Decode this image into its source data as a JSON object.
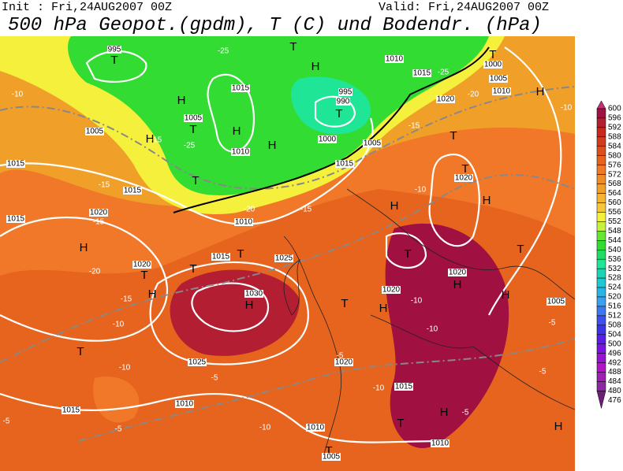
{
  "header": {
    "init": "Init : Fri,24AUG2007 00Z",
    "valid": "Valid: Fri,24AUG2007 00Z",
    "title": "500 hPa Geopot.(gpdm), T (C) und Bodendr. (hPa)"
  },
  "colorbar": {
    "labels": [
      600,
      596,
      592,
      588,
      584,
      580,
      576,
      572,
      568,
      564,
      560,
      556,
      552,
      548,
      544,
      540,
      536,
      532,
      528,
      524,
      520,
      516,
      512,
      508,
      504,
      500,
      496,
      492,
      488,
      484,
      480,
      476
    ],
    "colors": [
      "#c0307a",
      "#a01040",
      "#b41e32",
      "#c8281e",
      "#d23c1e",
      "#dc501e",
      "#e6641e",
      "#f07828",
      "#f08c28",
      "#f0a028",
      "#f5b432",
      "#f5c83c",
      "#f5f03c",
      "#c8f03c",
      "#64e632",
      "#32dc32",
      "#1edc64",
      "#1ee696",
      "#1ed2b4",
      "#1ec8d2",
      "#28b4e6",
      "#3ca0f0",
      "#3c78f0",
      "#3c50f0",
      "#3c32e6",
      "#5a1ee6",
      "#7a14dc",
      "#9614d2",
      "#b414c8",
      "#a01eb4",
      "#8c28a0",
      "#6e1e78"
    ]
  },
  "map_labels": [
    "T",
    "T",
    "H",
    "H",
    "H",
    "T",
    "H",
    "H",
    "H",
    "T",
    "T",
    "T",
    "T",
    "H",
    "H",
    "H",
    "T",
    "T",
    "H",
    "T",
    "T",
    "T",
    "H",
    "H",
    "H",
    "T",
    "H",
    "T",
    "H",
    "T",
    "H",
    "T",
    "T",
    "995",
    "1015",
    "1005",
    "995",
    "990",
    "1000",
    "1005",
    "1010",
    "1015",
    "1020",
    "1000",
    "1005",
    "1010",
    "1010",
    "1015",
    "1005",
    "1015",
    "1020",
    "1025",
    "1020",
    "1020",
    "1030",
    "1025",
    "1020",
    "1015",
    "1020",
    "1010",
    "1020",
    "1015",
    "1015",
    "1010",
    "1015",
    "1010",
    "1005",
    "1010",
    "1005",
    "1015",
    "-25",
    "-25",
    "-10",
    "-15",
    "-25",
    "-20",
    "-15",
    "-15",
    "-15",
    "-20",
    "-15",
    "-10",
    "-10",
    "-5",
    "-5",
    "-5",
    "-10",
    "-10",
    "-5",
    "-10",
    "-5",
    "-5",
    "-10",
    "-10",
    "-5",
    "-20",
    "-15",
    "-10"
  ]
}
